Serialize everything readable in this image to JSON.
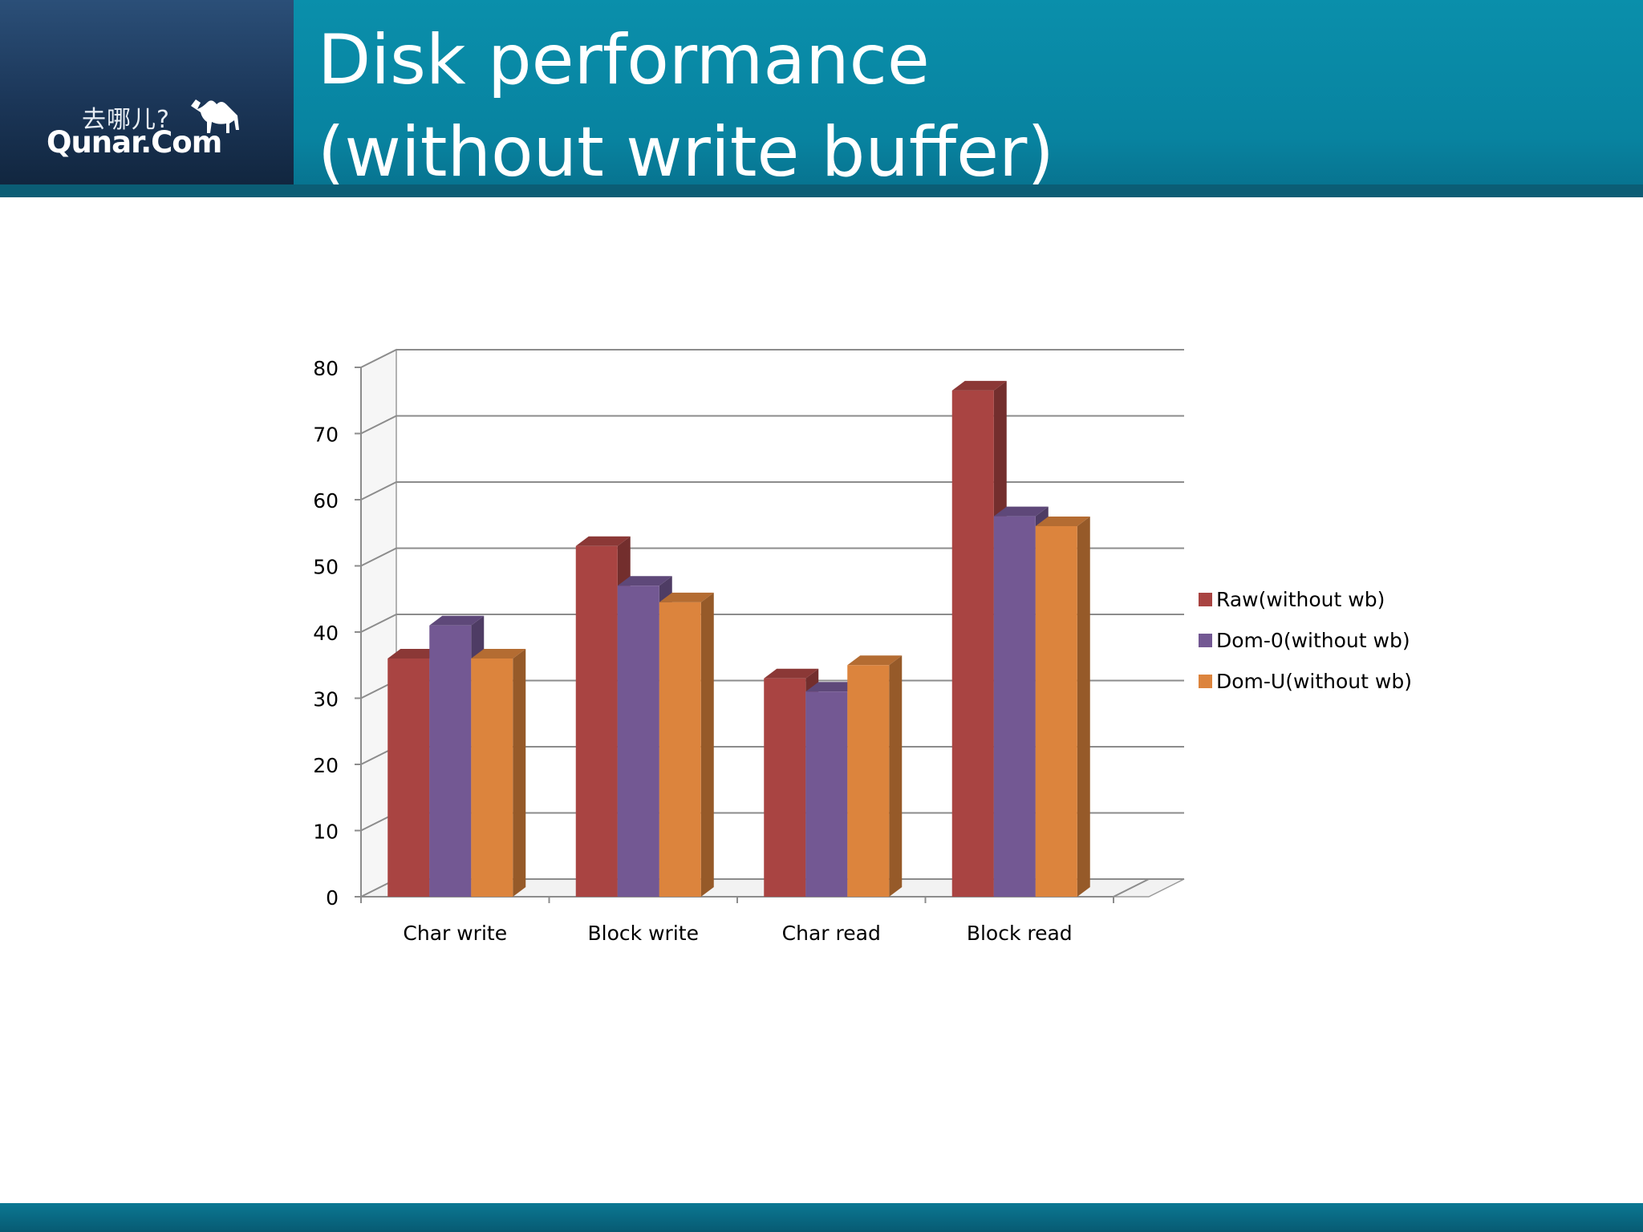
{
  "header": {
    "title_line1": "Disk performance",
    "title_line2": "(without write buffer)",
    "logo_cn": "去哪儿?",
    "logo_en": "Qunar.Com"
  },
  "chart_data": {
    "type": "bar",
    "style": "3d-clustered-column",
    "title": "",
    "xlabel": "",
    "ylabel": "",
    "categories": [
      "Char write",
      "Block write",
      "Char read",
      "Block read"
    ],
    "series": [
      {
        "name": "Raw(without wb)",
        "values": [
          36,
          53,
          33,
          76.5
        ],
        "color": "#a94442"
      },
      {
        "name": "Dom-0(without wb)",
        "values": [
          41,
          47,
          31,
          57.5
        ],
        "color": "#735893"
      },
      {
        "name": "Dom-U(without wb)",
        "values": [
          36,
          44.5,
          35,
          56
        ],
        "color": "#dc843d"
      }
    ],
    "yticks": [
      "0",
      "10",
      "20",
      "30",
      "40",
      "50",
      "60",
      "70",
      "80"
    ],
    "ylim": [
      0,
      80
    ],
    "grid": true,
    "legend_position": "right"
  }
}
